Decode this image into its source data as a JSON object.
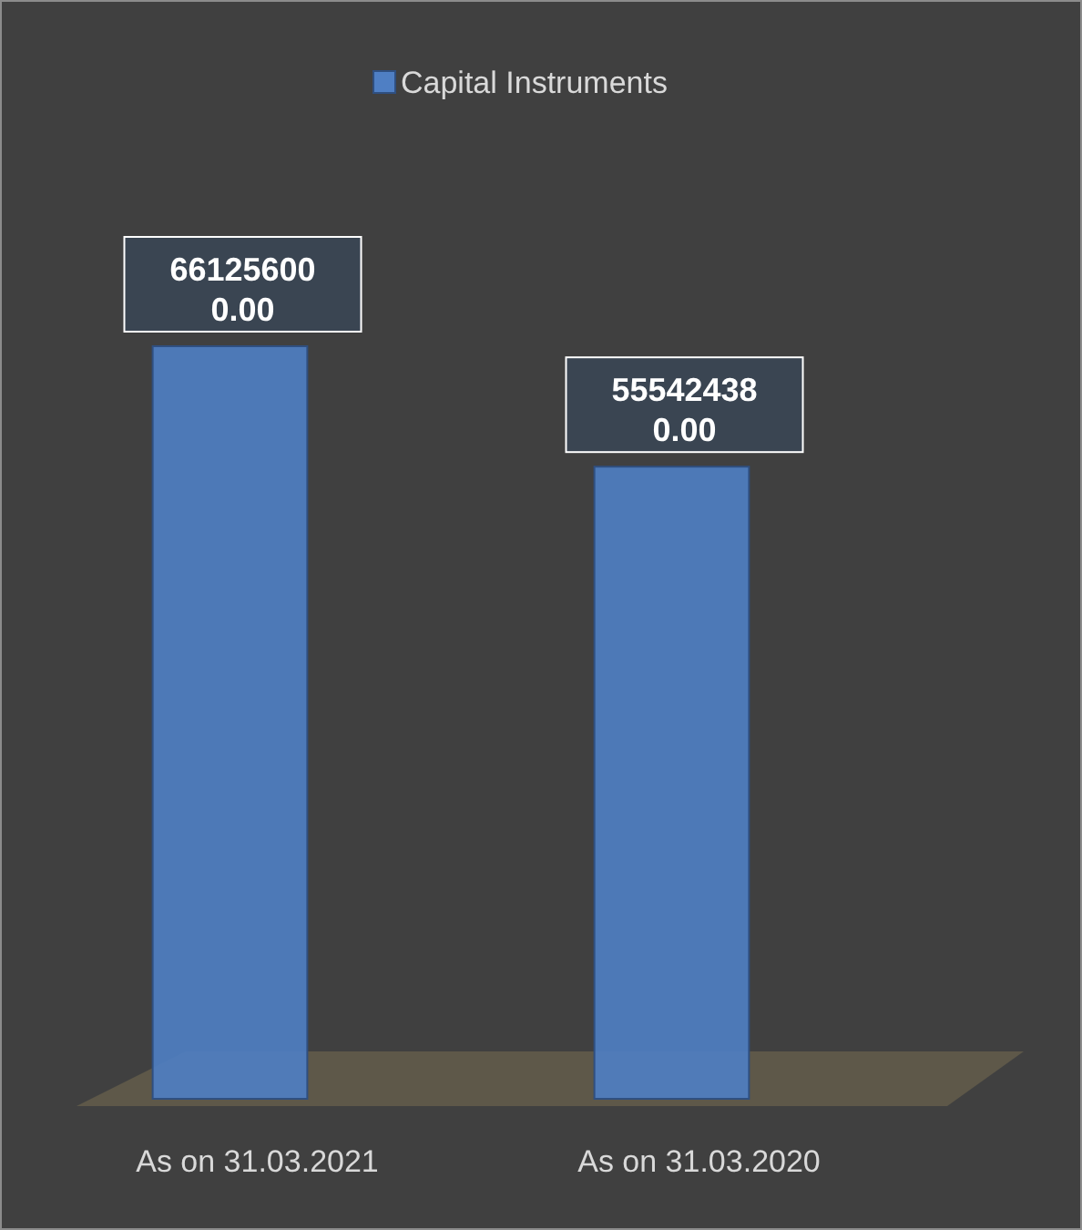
{
  "chart_data": {
    "type": "bar",
    "categories": [
      "As on 31.03.2021",
      "As on 31.03.2020"
    ],
    "series": [
      {
        "name": "Capital Instruments",
        "color": "#4f7fc4",
        "values": [
          661256000.0,
          555424380.0
        ],
        "value_labels": [
          "661256000.00",
          "555424380.00"
        ]
      }
    ],
    "tick_labels": "x",
    "legend": "top"
  }
}
